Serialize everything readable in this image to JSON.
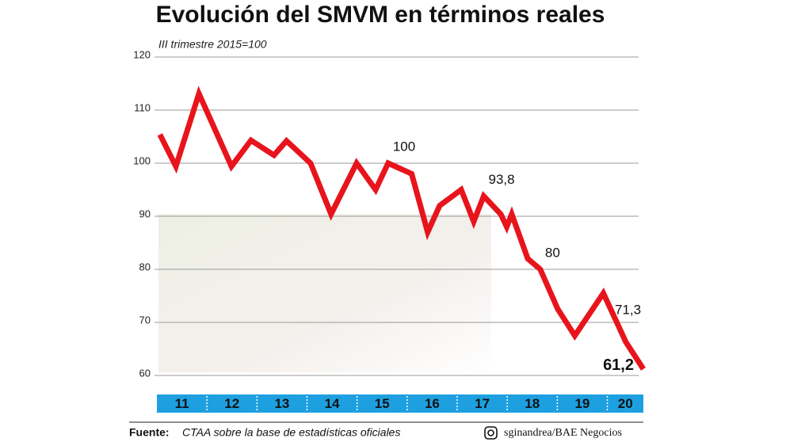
{
  "chart_data": {
    "type": "line",
    "title": "Evolución del SMVM en términos reales",
    "subtitle": "III trimestre 2015=100",
    "x": [
      2011.06,
      2011.38,
      2011.84,
      2012.49,
      2012.88,
      2013.34,
      2013.59,
      2014.07,
      2014.48,
      2014.99,
      2015.37,
      2015.62,
      2016.09,
      2016.41,
      2016.65,
      2017.08,
      2017.33,
      2017.53,
      2017.87,
      2017.99,
      2018.09,
      2018.41,
      2018.66,
      2019.01,
      2019.35,
      2019.92,
      2020.37,
      2020.72
    ],
    "series": [
      {
        "color": "#e8141c",
        "values": [
          105.4,
          99.4,
          113.1,
          99.4,
          104.3,
          101.5,
          104.2,
          100,
          90.4,
          100,
          95,
          100,
          98,
          87,
          92,
          95,
          89,
          93.8,
          90.4,
          88,
          90.4,
          82,
          80,
          72.5,
          67.5,
          75.5,
          66.3,
          61.2
        ],
        "value_labels": [
          null,
          null,
          null,
          null,
          null,
          null,
          null,
          null,
          null,
          null,
          null,
          "100",
          null,
          null,
          null,
          null,
          null,
          "93,8",
          null,
          null,
          null,
          null,
          "80",
          null,
          null,
          null,
          null,
          "61,2"
        ]
      }
    ],
    "annotations": [
      "71,3"
    ],
    "xlim": [
      2011,
      2020.72
    ],
    "xticks": [
      {
        "value": 2011,
        "label": "11"
      },
      {
        "value": 2012,
        "label": "12"
      },
      {
        "value": 2013,
        "label": "13"
      },
      {
        "value": 2014,
        "label": "14"
      },
      {
        "value": 2015,
        "label": "15"
      },
      {
        "value": 2016,
        "label": "16"
      },
      {
        "value": 2017,
        "label": "17"
      },
      {
        "value": 2018,
        "label": "18"
      },
      {
        "value": 2019,
        "label": "19"
      },
      {
        "value": 2020,
        "label": "20"
      }
    ],
    "ylim": [
      60,
      120
    ],
    "yticks": [
      60,
      70,
      80,
      90,
      100,
      110,
      120
    ],
    "grid": true,
    "band_color": "#1ea0e0",
    "footer": {
      "label": "Fuente:",
      "source": "CTAA sobre la base de estadísticas oficiales",
      "credit": "sginandrea/BAE Negocios"
    }
  }
}
